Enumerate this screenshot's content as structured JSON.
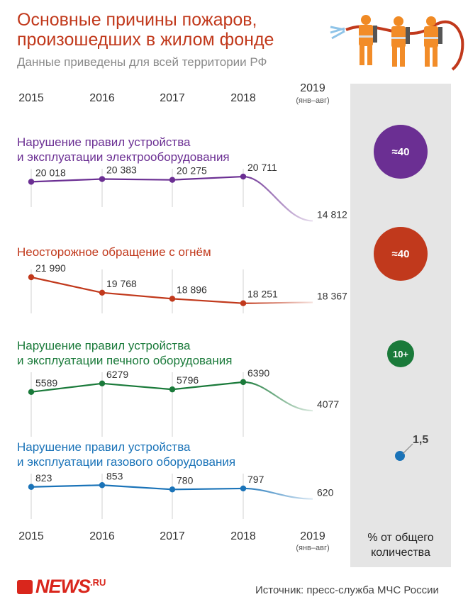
{
  "header": {
    "title_line1": "Основные причины пожаров,",
    "title_line2": "произошедших в жилом фонде",
    "subtitle": "Данные приведены для всей территории РФ"
  },
  "chart_data": {
    "type": "line",
    "title": "Основные причины пожаров, произошедших в жилом фонде",
    "subtitle": "Данные приведены для всей территории РФ",
    "years": [
      "2015",
      "2016",
      "2017",
      "2018",
      "2019"
    ],
    "last_year_note": "(янв–авг)",
    "series": [
      {
        "name_line1": "Нарушение правил устройства",
        "name_line2": "и эксплуатации электрооборудования",
        "values": [
          20018,
          20383,
          20275,
          20711,
          14812
        ],
        "labels": [
          "20 018",
          "20 383",
          "20 275",
          "20 711",
          "14 812"
        ],
        "color": "#6b2f93",
        "share": "≈40",
        "share_value": 40
      },
      {
        "name_line1": "Неосторожное обращение с огнём",
        "name_line2": "",
        "values": [
          21990,
          19768,
          18896,
          18251,
          18367
        ],
        "labels": [
          "21 990",
          "19 768",
          "18 896",
          "18 251",
          "18 367"
        ],
        "color": "#c1391c",
        "share": "≈40",
        "share_value": 40
      },
      {
        "name_line1": "Нарушение правил устройства",
        "name_line2": "и эксплуатации печного оборудования",
        "values": [
          5589,
          6279,
          5796,
          6390,
          4077
        ],
        "labels": [
          "5589",
          "6279",
          "5796",
          "6390",
          "4077"
        ],
        "color": "#1a7a3a",
        "share": "10+",
        "share_value": 10
      },
      {
        "name_line1": "Нарушение правил устройства",
        "name_line2": "и эксплуатации газового оборудования",
        "values": [
          823,
          853,
          780,
          797,
          620
        ],
        "labels": [
          "823",
          "853",
          "780",
          "797",
          "620"
        ],
        "color": "#1a73b8",
        "share": "1,5",
        "share_value": 1.5
      }
    ],
    "legend": "% от общего количества"
  },
  "footer": {
    "logo": "NEWS",
    "logo_suffix": ".RU",
    "source": "Источник: пресс-служба МЧС России"
  },
  "colors": {
    "accent": "#c1391c",
    "panel": "#e5e5e5"
  },
  "icons": [
    "firefighters-illustration",
    "news-logo-icon"
  ]
}
